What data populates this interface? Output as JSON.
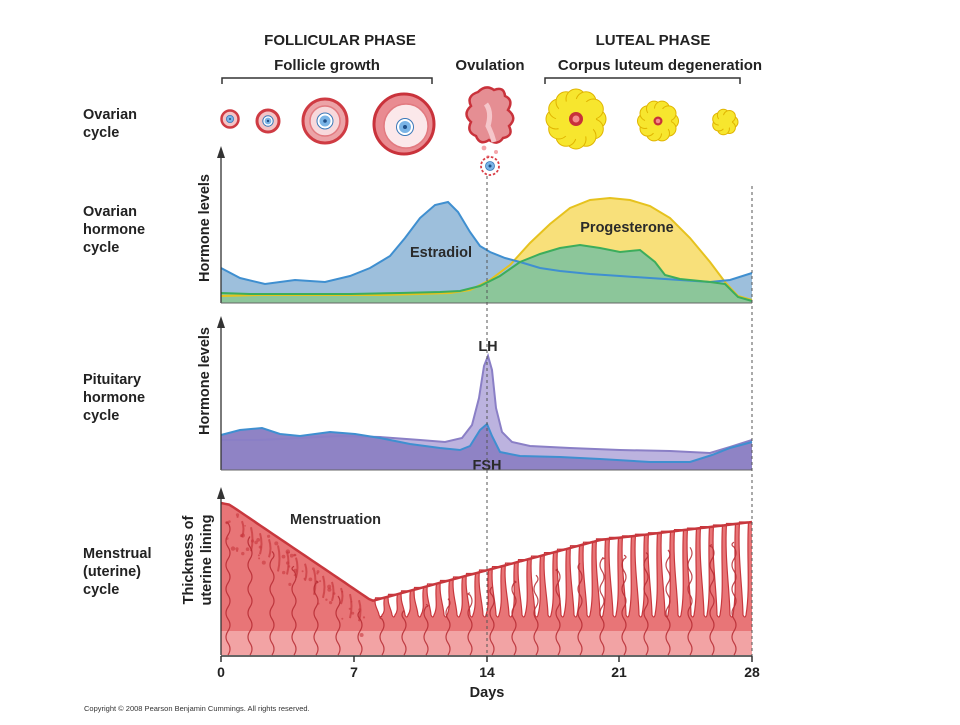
{
  "header": {
    "follicular_phase": "FOLLICULAR PHASE",
    "follicle_growth": "Follicle growth",
    "ovulation": "Ovulation",
    "luteal_phase": "LUTEAL PHASE",
    "corpus_luteum": "Corpus luteum degeneration"
  },
  "rows": {
    "ovarian_cycle": [
      "Ovarian",
      "cycle"
    ],
    "ovarian_hormone_cycle": [
      "Ovarian",
      "hormone",
      "cycle"
    ],
    "pituitary_hormone_cycle": [
      "Pituitary",
      "hormone",
      "cycle"
    ],
    "menstrual_cycle": [
      "Menstrual",
      "(uterine)",
      "cycle"
    ]
  },
  "axes": {
    "hormone_levels_1": "Hormone levels",
    "hormone_levels_2": "Hormone levels",
    "thickness_line1": "Thickness of",
    "thickness_line2": "uterine lining",
    "x_title": "Days",
    "x_ticks": [
      "0",
      "7",
      "14",
      "21",
      "28"
    ]
  },
  "curves": {
    "estradiol": "Estradiol",
    "progesterone": "Progesterone",
    "lh": "LH",
    "fsh": "FSH",
    "menstruation": "Menstruation"
  },
  "colors": {
    "estradiol_fill": "#9dbfdc",
    "estradiol_line": "#3f8fd0",
    "progesterone_fill": "#f8e07a",
    "progesterone_line": "#e6c21e",
    "overlap_green": "#8cc69a",
    "green_line": "#3cad5c",
    "lh_fill": "#bcb3df",
    "lh_line": "#8a7fc6",
    "fsh_fill": "#8f83c5",
    "fsh_line": "#3f8fd0",
    "lining": "#e87577",
    "lining_dark": "#c8373d",
    "lining_base": "#f5b3b3"
  },
  "copyright": "Copyright © 2008 Pearson Benjamin Cummings. All rights reserved."
}
